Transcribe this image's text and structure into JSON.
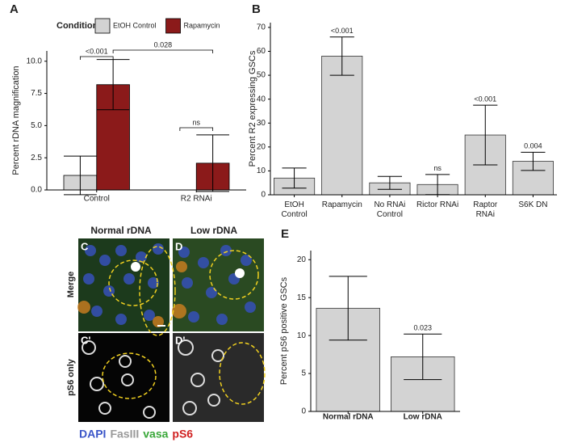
{
  "chart_data": [
    {
      "type": "bar",
      "panel": "A",
      "ylabel": "Percent rDNA magnification",
      "legend_title": "Condition",
      "categories": [
        "Control",
        "R2 RNAi"
      ],
      "series": [
        {
          "name": "EtOH Control",
          "color": "#d3d3d3",
          "values": [
            1.13,
            0
          ],
          "errors": [
            1.5,
            null
          ]
        },
        {
          "name": "Rapamycin",
          "color": "#8b1a1a",
          "values": [
            8.18,
            2.08
          ],
          "errors": [
            1.95,
            2.2
          ]
        }
      ],
      "annotations": [
        "<0.001",
        "0.028",
        "ns"
      ],
      "ylim": [
        0,
        10.8
      ],
      "yticks": [
        {
          "value": 0,
          "label": "0.0"
        },
        2.5,
        {
          "value": 5,
          "label": "5.0"
        },
        7.5,
        {
          "value": 10,
          "label": "10.0"
        }
      ]
    },
    {
      "type": "bar",
      "panel": "B",
      "ylabel": "Percent R2 expressing GSCs",
      "categories": [
        "EtOH Control",
        "Rapamycin",
        "No RNAi Control",
        "Rictor RNAi",
        "Raptor RNAi",
        "S6K DN"
      ],
      "values": [
        7,
        58,
        5,
        4.3,
        25,
        14
      ],
      "errors": [
        4.2,
        8,
        2.7,
        4.2,
        12.5,
        3.8
      ],
      "value_annotations": [
        null,
        "<0.001",
        null,
        "ns",
        "<0.001",
        "0.004"
      ],
      "color": "#d3d3d3",
      "ylim": [
        0,
        72
      ],
      "yticks": [
        0,
        10,
        20,
        30,
        40,
        50,
        60,
        70
      ]
    },
    {
      "type": "bar",
      "panel": "E",
      "ylabel": "Percent pS6 positive GSCs",
      "categories": [
        "Normal rDNA",
        "Low rDNA"
      ],
      "values": [
        13.6,
        7.2
      ],
      "errors": [
        4.2,
        3.0
      ],
      "value_annotations": [
        null,
        "0.023"
      ],
      "color": "#d3d3d3",
      "ylim": [
        0,
        21.2
      ],
      "yticks": [
        0,
        5,
        10,
        15,
        20
      ]
    }
  ],
  "images": {
    "columns": [
      "Normal rDNA",
      "Low rDNA"
    ],
    "rows": [
      "Merge",
      "pS6 only"
    ],
    "panel_labels": [
      "C",
      "D",
      "C'",
      "D'"
    ],
    "stains": [
      {
        "name": "DAPI",
        "color": "#3a55c8"
      },
      {
        "name": "FasIII",
        "color": "#9a9a9a"
      },
      {
        "name": "vasa",
        "color": "#3aa83a"
      },
      {
        "name": "pS6",
        "color": "#d02020"
      }
    ]
  }
}
